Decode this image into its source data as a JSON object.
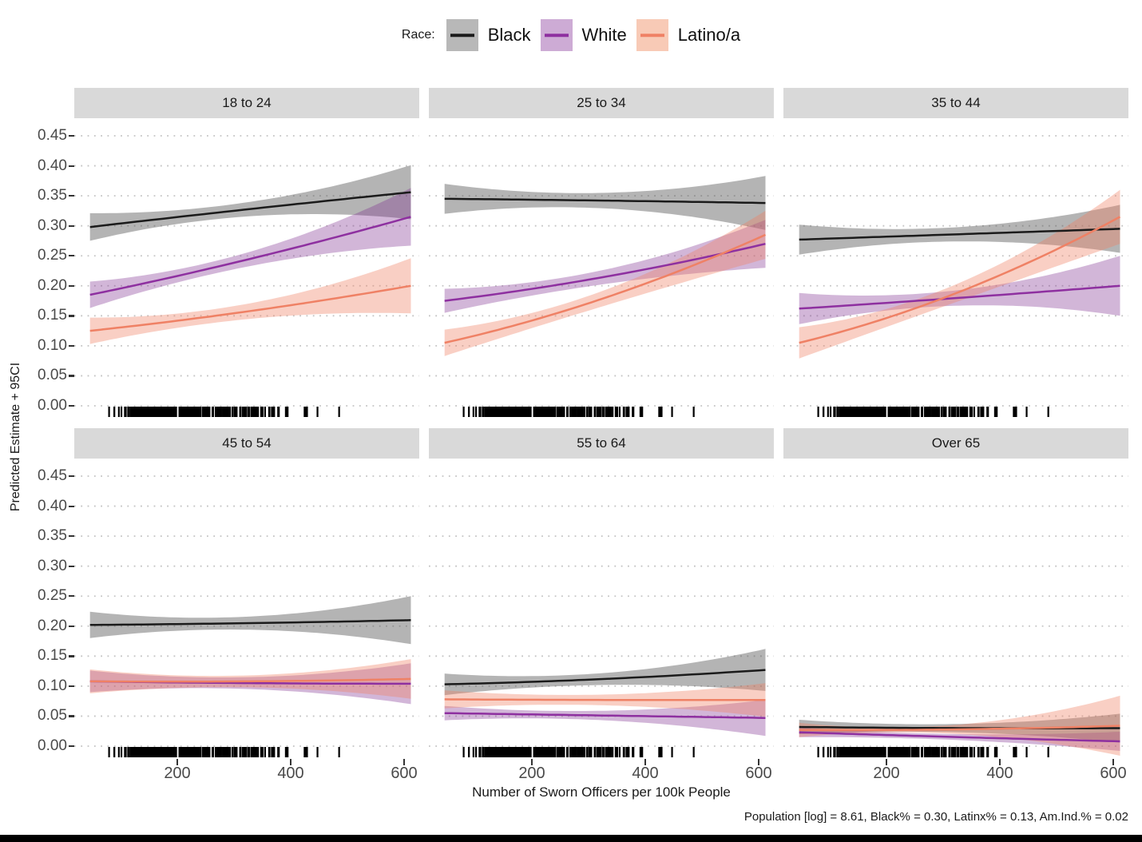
{
  "legend": {
    "title": "Race:",
    "entries": [
      {
        "label": "Black",
        "line_color": "#1b1b1b",
        "swatch_color": "#b8b8b8"
      },
      {
        "label": "White",
        "line_color": "#8e30a0",
        "swatch_color": "#cdabd5"
      },
      {
        "label": "Latino/a",
        "line_color": "#ef8165",
        "swatch_color": "#f8cab6"
      }
    ]
  },
  "axes": {
    "y_title": "Predicted Estimate + 95CI",
    "x_title": "Number of Sworn Officers per 100k People",
    "y_tick_labels": [
      "0.45",
      "0.40",
      "0.35",
      "0.30",
      "0.25",
      "0.20",
      "0.15",
      "0.10",
      "0.05",
      "0.00"
    ],
    "x_tick_labels": [
      "200",
      "400",
      "600"
    ]
  },
  "caption": "Population [log] = 8.61, Black% = 0.30, Latinx% = 0.13, Am.Ind.% = 0.02",
  "chart_data": {
    "type": "line",
    "title": "",
    "xlabel": "Number of Sworn Officers per 100k People",
    "ylabel": "Predicted Estimate + 95CI",
    "legend_title": "Race:",
    "legend_position": "top-center",
    "grid": "dotted horizontal gridlines at every 0.05",
    "x_ticks": [
      200,
      400,
      600
    ],
    "x_domain": [
      46,
      612
    ],
    "ylim": [
      0,
      0.475
    ],
    "y_ticks": [
      0.0,
      0.05,
      0.1,
      0.15,
      0.2,
      0.25,
      0.3,
      0.35,
      0.4,
      0.45
    ],
    "note": "Each series is a linear prediction with 95% CI ribbon; values given at x=46, x=329, x=612. Identical observation rug along the x axis in every facet.",
    "rug": {
      "present": true,
      "axis": "x",
      "color": "#000000"
    },
    "facets": [
      {
        "title": "18 to 24",
        "series": [
          {
            "name": "Black",
            "color": "#1b1b1b",
            "ribbon_color": "#4d4d4d",
            "ribbon_opacity": 0.42,
            "x": [
              46,
              329,
              612
            ],
            "y": [
              0.298,
              0.328,
              0.356
            ],
            "ci_half": [
              0.023,
              0.012,
              0.045
            ]
          },
          {
            "name": "White",
            "color": "#8e30a0",
            "ribbon_color": "#7d2d8e",
            "ribbon_opacity": 0.35,
            "x": [
              46,
              329,
              612
            ],
            "y": [
              0.185,
              0.245,
              0.315
            ],
            "ci_half": [
              0.022,
              0.012,
              0.048
            ]
          },
          {
            "name": "Latino/a",
            "color": "#ef8165",
            "ribbon_color": "#ef8165",
            "ribbon_opacity": 0.38,
            "x": [
              46,
              329,
              612
            ],
            "y": [
              0.125,
              0.158,
              0.2
            ],
            "ci_half": [
              0.022,
              0.013,
              0.046
            ]
          }
        ]
      },
      {
        "title": "25 to 34",
        "series": [
          {
            "name": "Black",
            "color": "#1b1b1b",
            "ribbon_color": "#4d4d4d",
            "ribbon_opacity": 0.42,
            "x": [
              46,
              329,
              612
            ],
            "y": [
              0.345,
              0.342,
              0.338
            ],
            "ci_half": [
              0.025,
              0.013,
              0.045
            ]
          },
          {
            "name": "White",
            "color": "#8e30a0",
            "ribbon_color": "#7d2d8e",
            "ribbon_opacity": 0.35,
            "x": [
              46,
              329,
              612
            ],
            "y": [
              0.175,
              0.215,
              0.27
            ],
            "ci_half": [
              0.02,
              0.012,
              0.04
            ]
          },
          {
            "name": "Latino/a",
            "color": "#ef8165",
            "ribbon_color": "#ef8165",
            "ribbon_opacity": 0.38,
            "x": [
              46,
              329,
              612
            ],
            "y": [
              0.105,
              0.18,
              0.285
            ],
            "ci_half": [
              0.022,
              0.013,
              0.04
            ]
          }
        ]
      },
      {
        "title": "35 to 44",
        "series": [
          {
            "name": "Black",
            "color": "#1b1b1b",
            "ribbon_color": "#4d4d4d",
            "ribbon_opacity": 0.42,
            "x": [
              46,
              329,
              612
            ],
            "y": [
              0.277,
              0.286,
              0.295
            ],
            "ci_half": [
              0.025,
              0.012,
              0.04
            ]
          },
          {
            "name": "White",
            "color": "#8e30a0",
            "ribbon_color": "#7d2d8e",
            "ribbon_opacity": 0.35,
            "x": [
              46,
              329,
              612
            ],
            "y": [
              0.162,
              0.18,
              0.2
            ],
            "ci_half": [
              0.026,
              0.013,
              0.05
            ]
          },
          {
            "name": "Latino/a",
            "color": "#ef8165",
            "ribbon_color": "#ef8165",
            "ribbon_opacity": 0.38,
            "x": [
              46,
              329,
              612
            ],
            "y": [
              0.105,
              0.19,
              0.315
            ],
            "ci_half": [
              0.026,
              0.015,
              0.045
            ]
          }
        ]
      },
      {
        "title": "45 to 54",
        "series": [
          {
            "name": "Black",
            "color": "#1b1b1b",
            "ribbon_color": "#4d4d4d",
            "ribbon_opacity": 0.42,
            "x": [
              46,
              329,
              612
            ],
            "y": [
              0.202,
              0.205,
              0.21
            ],
            "ci_half": [
              0.022,
              0.011,
              0.04
            ]
          },
          {
            "name": "White",
            "color": "#8e30a0",
            "ribbon_color": "#7d2d8e",
            "ribbon_opacity": 0.35,
            "x": [
              46,
              329,
              612
            ],
            "y": [
              0.108,
              0.105,
              0.104
            ],
            "ci_half": [
              0.018,
              0.01,
              0.034
            ]
          },
          {
            "name": "Latino/a",
            "color": "#ef8165",
            "ribbon_color": "#ef8165",
            "ribbon_opacity": 0.38,
            "x": [
              46,
              329,
              612
            ],
            "y": [
              0.108,
              0.108,
              0.112
            ],
            "ci_half": [
              0.02,
              0.01,
              0.033
            ]
          }
        ]
      },
      {
        "title": "55 to 64",
        "series": [
          {
            "name": "Black",
            "color": "#1b1b1b",
            "ribbon_color": "#4d4d4d",
            "ribbon_opacity": 0.42,
            "x": [
              46,
              329,
              612
            ],
            "y": [
              0.103,
              0.112,
              0.127
            ],
            "ci_half": [
              0.018,
              0.01,
              0.035
            ]
          },
          {
            "name": "White",
            "color": "#8e30a0",
            "ribbon_color": "#7d2d8e",
            "ribbon_opacity": 0.35,
            "x": [
              46,
              329,
              612
            ],
            "y": [
              0.055,
              0.051,
              0.047
            ],
            "ci_half": [
              0.012,
              0.008,
              0.03
            ]
          },
          {
            "name": "Latino/a",
            "color": "#ef8165",
            "ribbon_color": "#ef8165",
            "ribbon_opacity": 0.38,
            "x": [
              46,
              329,
              612
            ],
            "y": [
              0.078,
              0.077,
              0.077
            ],
            "ci_half": [
              0.015,
              0.009,
              0.028
            ]
          }
        ]
      },
      {
        "title": "Over 65",
        "series": [
          {
            "name": "Black",
            "color": "#1b1b1b",
            "ribbon_color": "#4d4d4d",
            "ribbon_opacity": 0.42,
            "x": [
              46,
              329,
              612
            ],
            "y": [
              0.032,
              0.03,
              0.03
            ],
            "ci_half": [
              0.012,
              0.007,
              0.024
            ]
          },
          {
            "name": "White",
            "color": "#8e30a0",
            "ribbon_color": "#7d2d8e",
            "ribbon_opacity": 0.35,
            "x": [
              46,
              329,
              612
            ],
            "y": [
              0.023,
              0.015,
              0.008
            ],
            "ci_half": [
              0.008,
              0.005,
              0.016
            ]
          },
          {
            "name": "Latino/a",
            "color": "#ef8165",
            "ribbon_color": "#ef8165",
            "ribbon_opacity": 0.38,
            "x": [
              46,
              329,
              612
            ],
            "y": [
              0.027,
              0.028,
              0.034
            ],
            "ci_half": [
              0.012,
              0.008,
              0.05
            ]
          }
        ]
      }
    ]
  }
}
